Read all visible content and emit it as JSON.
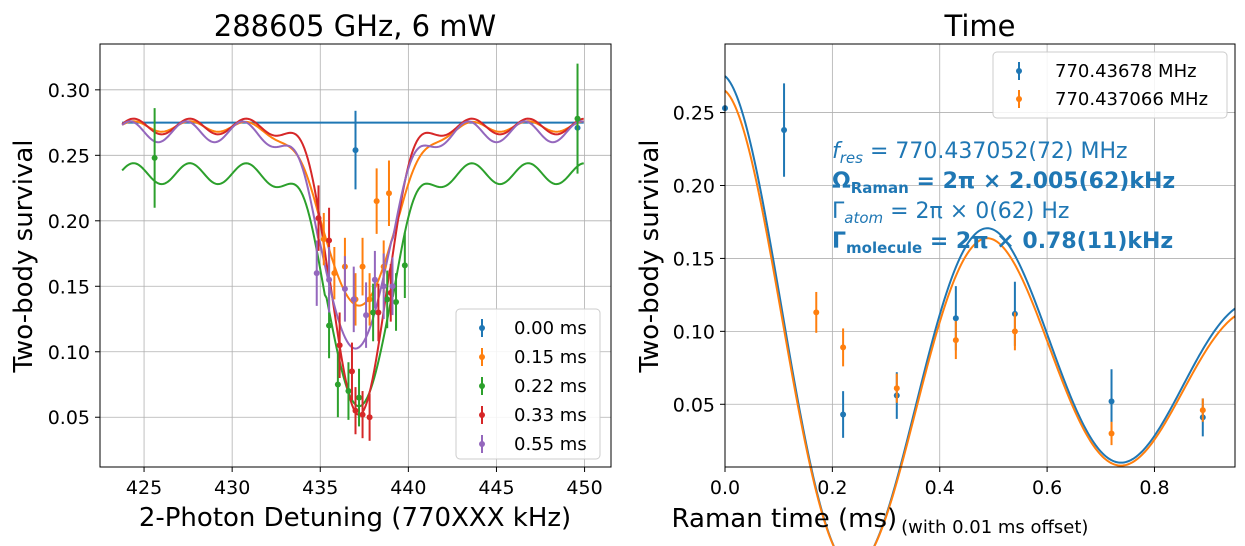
{
  "chart_data": [
    {
      "type": "scatter",
      "title": "288605 GHz, 6 mW",
      "xlabel": "2-Photon Detuning (770XXX kHz)",
      "ylabel": "Two-body survival",
      "xlim": [
        422.5,
        451.5
      ],
      "ylim": [
        0.012,
        0.335
      ],
      "xticks": [
        425,
        430,
        435,
        440,
        445,
        450
      ],
      "yticks": [
        0.05,
        0.1,
        0.15,
        0.2,
        0.25,
        0.3
      ],
      "xtick_labels": [
        "425",
        "430",
        "435",
        "440",
        "445",
        "450"
      ],
      "ytick_labels": [
        "0.05",
        "0.10",
        "0.15",
        "0.20",
        "0.25",
        "0.30"
      ],
      "grid": true,
      "legend_position": "lower-right",
      "series": [
        {
          "name": "0.00 ms",
          "color": "#1f77b4",
          "points": [
            [
              437.0,
              0.254,
              0.03
            ],
            [
              449.6,
              0.271,
              0.03
            ]
          ],
          "fit": {
            "base": 0.275,
            "depth": 0.0,
            "center": 437.4,
            "width": 2.6,
            "ripple": 0.0
          }
        },
        {
          "name": "0.15 ms",
          "color": "#ff7f0e",
          "points": [
            [
              435.2,
              0.186,
              0.02
            ],
            [
              435.8,
              0.16,
              0.02
            ],
            [
              436.4,
              0.165,
              0.022
            ],
            [
              437.0,
              0.14,
              0.02
            ],
            [
              437.4,
              0.165,
              0.022
            ],
            [
              437.8,
              0.14,
              0.02
            ],
            [
              438.2,
              0.215,
              0.025
            ],
            [
              438.6,
              0.165,
              0.02
            ],
            [
              438.9,
              0.221,
              0.025
            ]
          ],
          "fit": {
            "base": 0.272,
            "depth": 0.138,
            "center": 437.2,
            "width": 1.9,
            "ripple": 0.004
          }
        },
        {
          "name": "0.22 ms",
          "color": "#2ca02c",
          "points": [
            [
              425.6,
              0.248,
              0.038
            ],
            [
              435.5,
              0.12,
              0.025
            ],
            [
              436.0,
              0.075,
              0.025
            ],
            [
              436.6,
              0.07,
              0.022
            ],
            [
              437.2,
              0.065,
              0.022
            ],
            [
              438.0,
              0.13,
              0.022
            ],
            [
              438.8,
              0.14,
              0.022
            ],
            [
              439.3,
              0.138,
              0.022
            ],
            [
              439.8,
              0.166,
              0.025
            ],
            [
              449.6,
              0.278,
              0.042
            ]
          ],
          "fit": {
            "base": 0.236,
            "depth": 0.18,
            "center": 437.2,
            "width": 1.6,
            "ripple": 0.008
          }
        },
        {
          "name": "0.33 ms",
          "color": "#d62728",
          "points": [
            [
              434.9,
              0.202,
              0.025
            ],
            [
              435.5,
              0.185,
              0.025
            ],
            [
              436.1,
              0.105,
              0.025
            ],
            [
              436.8,
              0.085,
              0.022
            ],
            [
              437.0,
              0.055,
              0.018
            ],
            [
              437.4,
              0.052,
              0.018
            ],
            [
              437.8,
              0.05,
              0.018
            ],
            [
              438.3,
              0.13,
              0.022
            ],
            [
              439.0,
              0.145,
              0.022
            ]
          ],
          "fit": {
            "base": 0.272,
            "depth": 0.222,
            "center": 437.2,
            "width": 1.45,
            "ripple": 0.006
          }
        },
        {
          "name": "0.55 ms",
          "color": "#9467bd",
          "points": [
            [
              434.8,
              0.16,
              0.025
            ],
            [
              435.5,
              0.155,
              0.025
            ],
            [
              436.4,
              0.148,
              0.025
            ],
            [
              436.9,
              0.14,
              0.025
            ],
            [
              437.6,
              0.128,
              0.025
            ],
            [
              438.1,
              0.155,
              0.022
            ],
            [
              438.6,
              0.15,
              0.025
            ],
            [
              439.1,
              0.15,
              0.022
            ]
          ],
          "fit": {
            "base": 0.268,
            "depth": 0.168,
            "center": 437.0,
            "width": 1.7,
            "ripple": 0.008
          }
        }
      ]
    },
    {
      "type": "scatter",
      "title": "Time",
      "xlabel": "Raman time (ms)",
      "xlabel_sub": "(with 0.01 ms offset)",
      "ylabel": "Two-body survival",
      "xlim": [
        0.0,
        0.95
      ],
      "ylim": [
        0.007,
        0.297
      ],
      "xticks": [
        0.0,
        0.2,
        0.4,
        0.6,
        0.8
      ],
      "yticks": [
        0.05,
        0.1,
        0.15,
        0.2,
        0.25
      ],
      "xtick_labels": [
        "0.0",
        "0.2",
        "0.4",
        "0.6",
        "0.8"
      ],
      "ytick_labels": [
        "0.05",
        "0.10",
        "0.15",
        "0.20",
        "0.25"
      ],
      "grid": true,
      "legend_position": "top-right",
      "series": [
        {
          "name": "770.43678 MHz",
          "color": "#1f77b4",
          "points": [
            [
              0.0,
              0.253,
              0.0
            ],
            [
              0.11,
              0.238,
              0.032
            ],
            [
              0.22,
              0.043,
              0.016
            ],
            [
              0.32,
              0.056,
              0.016
            ],
            [
              0.43,
              0.109,
              0.022
            ],
            [
              0.54,
              0.112,
              0.022
            ],
            [
              0.72,
              0.052,
              0.022
            ],
            [
              0.89,
              0.041,
              0.013
            ]
          ],
          "fit": {
            "offset": 0.0755,
            "amp": 0.1995,
            "period": 0.498,
            "decay": 0.3
          }
        },
        {
          "name": "770.437066 MHz",
          "color": "#ff7f0e",
          "points": [
            [
              0.17,
              0.113,
              0.014
            ],
            [
              0.22,
              0.089,
              0.013
            ],
            [
              0.32,
              0.061,
              0.01
            ],
            [
              0.43,
              0.094,
              0.013
            ],
            [
              0.54,
              0.1,
              0.013
            ],
            [
              0.72,
              0.03,
              0.008
            ],
            [
              0.89,
              0.046,
              0.008
            ]
          ],
          "fit": {
            "offset": 0.0715,
            "amp": 0.1935,
            "period": 0.498,
            "decay": 0.3
          }
        }
      ],
      "annotations": {
        "f_res_sym": "f",
        "f_res_sub": "res",
        "f_res_value": " = 770.437052(72) MHz",
        "omega_sym": "Ω",
        "omega_sub": "Raman",
        "omega_value": " = 2π × 2.005(62)kHz",
        "gamma_atom_sym": "Γ",
        "gamma_atom_sub": "atom",
        "gamma_atom_value": " = 2π × 0(62) Hz",
        "gamma_mol_sym": "Γ",
        "gamma_mol_sub": "molecule",
        "gamma_mol_value": " = 2π × 0.78(11)kHz",
        "color": "#1f77b4"
      }
    }
  ]
}
